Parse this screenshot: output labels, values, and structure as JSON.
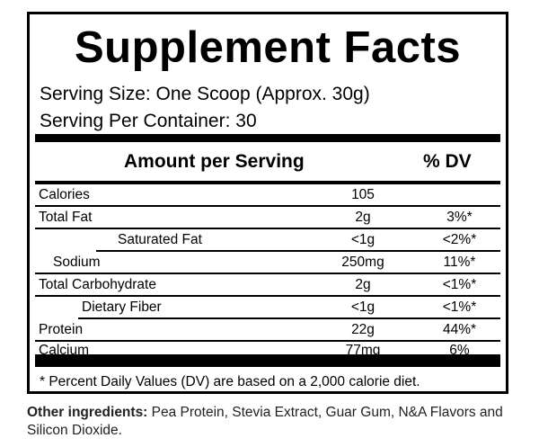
{
  "title": "Supplement Facts",
  "serving_size": "Serving Size:  One Scoop (Approx. 30g)",
  "servings_per_container": "Serving Per Container: 30",
  "header": {
    "amount": "Amount per Serving",
    "dv": "% DV"
  },
  "rows": [
    {
      "name": "Calories",
      "amount": "105",
      "dv": ""
    },
    {
      "name": "Total Fat",
      "amount": "2g",
      "dv": "3%*"
    },
    {
      "name": "Saturated Fat",
      "amount": "<1g",
      "dv": "<2%*"
    },
    {
      "name": "Sodium",
      "amount": "250mg",
      "dv": "11%*"
    },
    {
      "name": "Total Carbohydrate",
      "amount": "2g",
      "dv": "<1%*"
    },
    {
      "name": "Dietary Fiber",
      "amount": "<1g",
      "dv": "<1%*"
    },
    {
      "name": "Protein",
      "amount": "22g",
      "dv": "44%*"
    },
    {
      "name": "Calcium",
      "amount": "77mg",
      "dv": "6%"
    }
  ],
  "footnote": "* Percent Daily Values (DV) are based on a 2,000 calorie diet.",
  "other_ingredients": {
    "label": "Other ingredients:",
    "text": " Pea Protein, Stevia Extract, Guar Gum, N&A Flavors and Silicon Dioxide."
  }
}
